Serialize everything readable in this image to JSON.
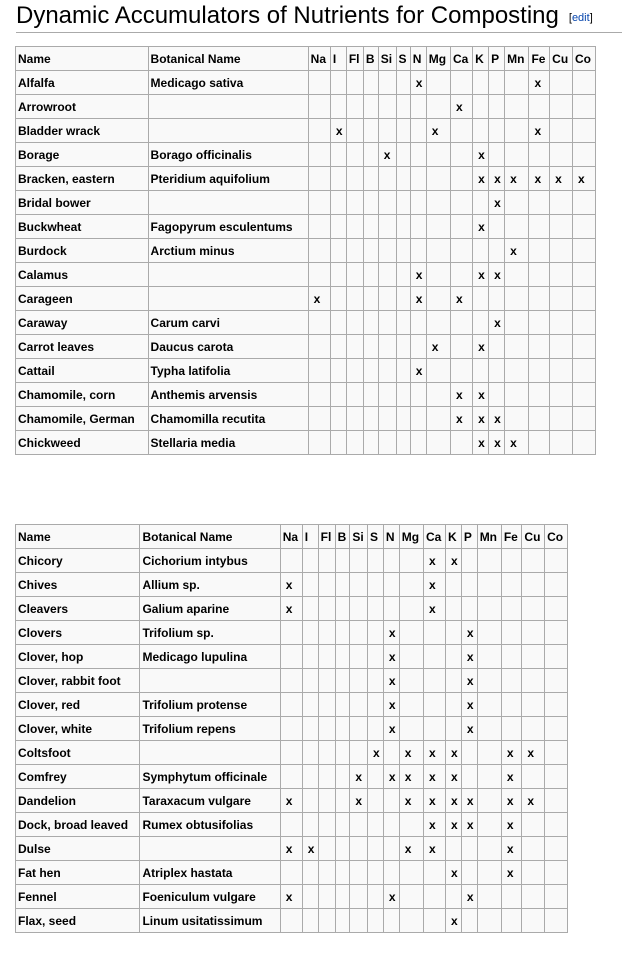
{
  "heading": {
    "title": "Dynamic Accumulators of Nutrients for Composting",
    "edit_label": "edit"
  },
  "columns": [
    "Name",
    "Botanical Name",
    "Na",
    "I",
    "Fl",
    "B",
    "Si",
    "S",
    "N",
    "Mg",
    "Ca",
    "K",
    "P",
    "Mn",
    "Fe",
    "Cu",
    "Co"
  ],
  "mark": "x",
  "tables": [
    {
      "rows": [
        {
          "name": "Alfalfa",
          "botanical": "Medicago sativa",
          "nutrients": [
            "N",
            "Fe"
          ]
        },
        {
          "name": "Arrowroot",
          "botanical": "",
          "nutrients": [
            "Ca"
          ]
        },
        {
          "name": "Bladder wrack",
          "botanical": "",
          "nutrients": [
            "I",
            "Mg",
            "Fe"
          ]
        },
        {
          "name": "Borage",
          "botanical": "Borago officinalis",
          "nutrients": [
            "Si",
            "K"
          ]
        },
        {
          "name": "Bracken, eastern",
          "botanical": "Pteridium aquifolium",
          "nutrients": [
            "K",
            "P",
            "Mn",
            "Fe",
            "Cu",
            "Co"
          ]
        },
        {
          "name": "Bridal bower",
          "botanical": "",
          "nutrients": [
            "P"
          ]
        },
        {
          "name": "Buckwheat",
          "botanical": "Fagopyrum esculentums",
          "nutrients": [
            "K"
          ]
        },
        {
          "name": "Burdock",
          "botanical": "Arctium minus",
          "nutrients": [
            "Mn"
          ]
        },
        {
          "name": "Calamus",
          "botanical": "",
          "nutrients": [
            "N",
            "K",
            "P"
          ]
        },
        {
          "name": "Carageen",
          "botanical": "",
          "nutrients": [
            "Na",
            "N",
            "Ca"
          ]
        },
        {
          "name": "Caraway",
          "botanical": "Carum carvi",
          "nutrients": [
            "P"
          ]
        },
        {
          "name": "Carrot leaves",
          "botanical": "Daucus carota",
          "nutrients": [
            "Mg",
            "K"
          ]
        },
        {
          "name": "Cattail",
          "botanical": "Typha latifolia",
          "nutrients": [
            "N"
          ]
        },
        {
          "name": "Chamomile, corn",
          "botanical": "Anthemis arvensis",
          "nutrients": [
            "Ca",
            "K"
          ]
        },
        {
          "name": "Chamomile, German",
          "botanical": "Chamomilla recutita",
          "nutrients": [
            "Ca",
            "K",
            "P"
          ]
        },
        {
          "name": "Chickweed",
          "botanical": "Stellaria media",
          "nutrients": [
            "K",
            "P",
            "Mn"
          ]
        }
      ]
    },
    {
      "rows": [
        {
          "name": "Chicory",
          "botanical": "Cichorium intybus",
          "nutrients": [
            "Ca",
            "K"
          ]
        },
        {
          "name": "Chives",
          "botanical": "Allium sp.",
          "nutrients": [
            "Na",
            "Ca"
          ]
        },
        {
          "name": "Cleavers",
          "botanical": "Galium aparine",
          "nutrients": [
            "Na",
            "Ca"
          ]
        },
        {
          "name": "Clovers",
          "botanical": "Trifolium sp.",
          "nutrients": [
            "N",
            "P"
          ]
        },
        {
          "name": "Clover, hop",
          "botanical": "Medicago lupulina",
          "nutrients": [
            "N",
            "P"
          ]
        },
        {
          "name": "Clover, rabbit foot",
          "botanical": "",
          "nutrients": [
            "N",
            "P"
          ]
        },
        {
          "name": "Clover, red",
          "botanical": "Trifolium protense",
          "nutrients": [
            "N",
            "P"
          ]
        },
        {
          "name": "Clover, white",
          "botanical": "Trifolium repens",
          "nutrients": [
            "N",
            "P"
          ]
        },
        {
          "name": "Coltsfoot",
          "botanical": "",
          "nutrients": [
            "S",
            "Mg",
            "Ca",
            "K",
            "Fe",
            "Cu"
          ]
        },
        {
          "name": "Comfrey",
          "botanical": "Symphytum officinale",
          "nutrients": [
            "Si",
            "N",
            "Mg",
            "Ca",
            "K",
            "Fe"
          ]
        },
        {
          "name": "Dandelion",
          "botanical": "Taraxacum vulgare",
          "nutrients": [
            "Na",
            "Si",
            "Mg",
            "Ca",
            "K",
            "P",
            "Fe",
            "Cu"
          ]
        },
        {
          "name": "Dock, broad leaved",
          "botanical": "Rumex obtusifolias",
          "nutrients": [
            "Ca",
            "K",
            "P",
            "Fe"
          ]
        },
        {
          "name": "Dulse",
          "botanical": "",
          "nutrients": [
            "Na",
            "I",
            "Mg",
            "Ca",
            "Fe"
          ]
        },
        {
          "name": "Fat hen",
          "botanical": "Atriplex hastata",
          "nutrients": [
            "K",
            "Fe"
          ]
        },
        {
          "name": "Fennel",
          "botanical": "Foeniculum vulgare",
          "nutrients": [
            "Na",
            "N",
            "P"
          ]
        },
        {
          "name": "Flax, seed",
          "botanical": "Linum usitatissimum",
          "nutrients": [
            "K"
          ]
        }
      ]
    }
  ]
}
